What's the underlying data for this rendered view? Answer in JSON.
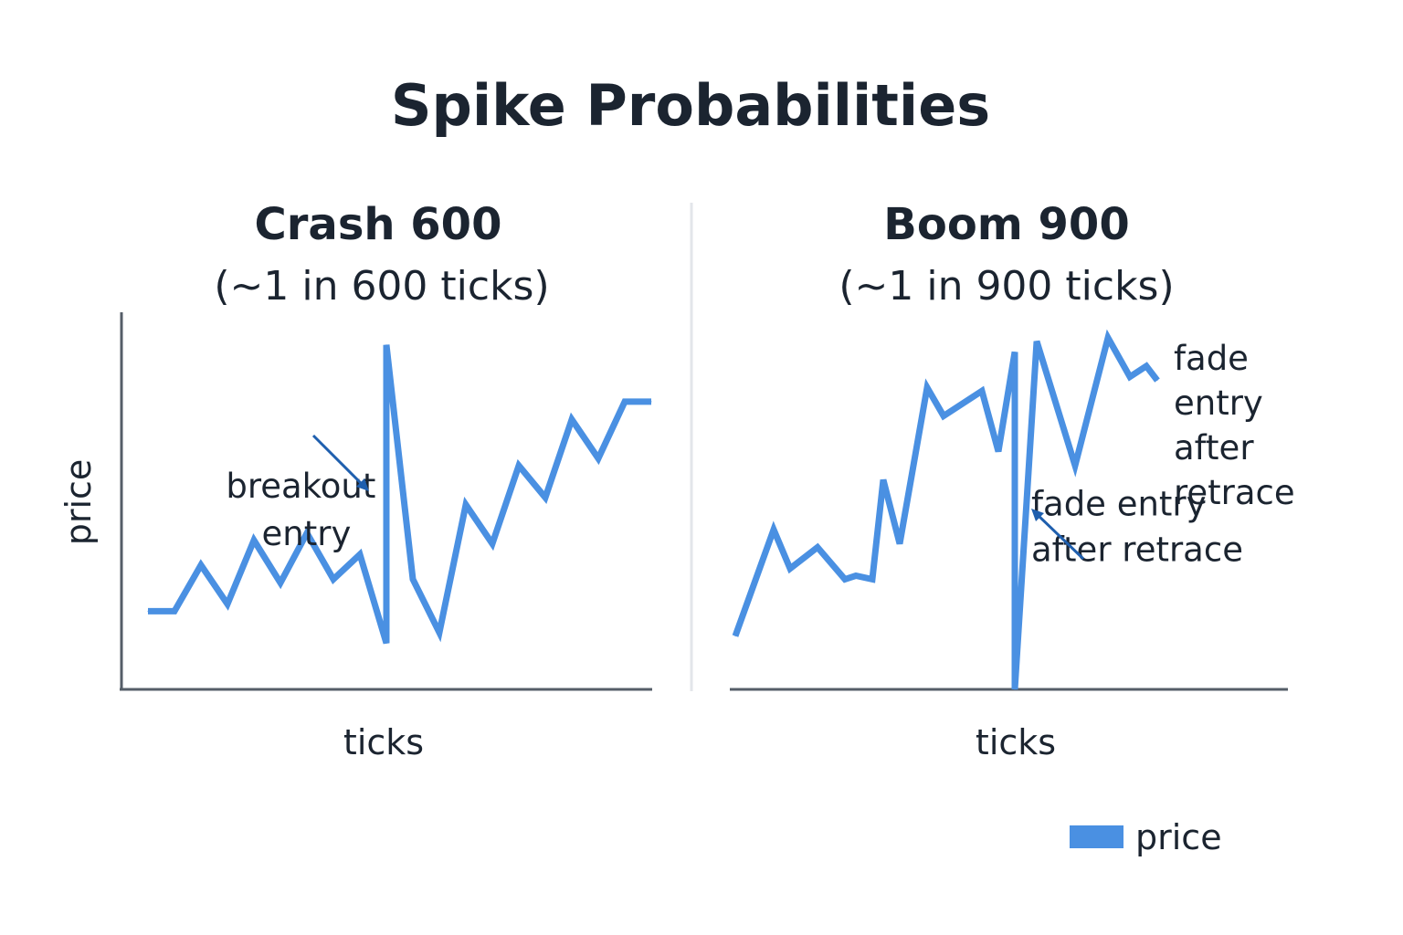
{
  "title": "Spike Probabilities",
  "colors": {
    "price": "#4a90e2",
    "axis": "#555e68",
    "arrow": "#1f5fae",
    "divider": "#e3e6ea",
    "text": "#1b2430"
  },
  "legend": {
    "label": "price",
    "placement": "bottom-right"
  },
  "chart_data": [
    {
      "type": "line",
      "title": "Crash 600",
      "subtitle": "(~1 in 600 ticks)",
      "xlabel": "ticks",
      "ylabel": "price",
      "grid": false,
      "xlim": [
        0,
        100
      ],
      "ylim": [
        0,
        100
      ],
      "series": [
        {
          "name": "price",
          "x": [
            5,
            10,
            15,
            20,
            25,
            30,
            35,
            40,
            45,
            50,
            50,
            55,
            60,
            65,
            70,
            75,
            80,
            85,
            90,
            95,
            100
          ],
          "y": [
            22,
            22,
            35,
            24,
            42,
            30,
            44,
            31,
            38,
            13,
            97,
            31,
            16,
            52,
            41,
            63,
            54,
            76,
            65,
            81,
            81
          ]
        }
      ],
      "annotations": [
        {
          "text": [
            "breakout",
            "entry"
          ],
          "x": 48,
          "y": 54
        }
      ]
    },
    {
      "type": "line",
      "title": "Boom 900",
      "subtitle": "(~1 in 900 ticks)",
      "xlabel": "ticks",
      "ylabel": "",
      "grid": false,
      "xlim": [
        0,
        100
      ],
      "ylim": [
        0,
        100
      ],
      "series": [
        {
          "name": "price",
          "x": [
            0,
            7,
            10,
            15,
            20,
            22,
            25,
            27,
            30,
            35,
            38,
            45,
            48,
            51,
            51,
            51,
            55,
            62,
            68,
            72,
            75,
            77
          ],
          "y": [
            15,
            45,
            34,
            40,
            31,
            32,
            31,
            59,
            41,
            85,
            77,
            84,
            67,
            95,
            67,
            0,
            98,
            63,
            99,
            88,
            91,
            87
          ]
        }
      ],
      "annotations": [
        {
          "text": [
            "fade entry",
            "after retrace"
          ],
          "x": 54,
          "y": 49
        },
        {
          "text": [
            "fade",
            "entry",
            "after",
            "retrace"
          ],
          "x": 80,
          "y": 90
        }
      ]
    }
  ]
}
